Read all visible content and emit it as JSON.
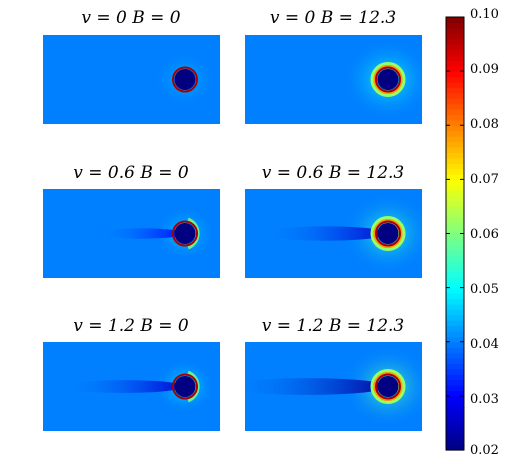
{
  "chart_data": {
    "type": "heatmap",
    "colormap": "jet",
    "panels": [
      {
        "title": "v = 0 B = 0",
        "v": 0,
        "B": 0
      },
      {
        "title": "v = 0 B = 12.3",
        "v": 0,
        "B": 12.3
      },
      {
        "title": "v = 0.6 B = 0",
        "v": 0.6,
        "B": 0
      },
      {
        "title": "v = 0.6 B = 12.3",
        "v": 0.6,
        "B": 12.3
      },
      {
        "title": "v = 1.2 B = 0",
        "v": 1.2,
        "B": 0
      },
      {
        "title": "v = 1.2 B = 12.3",
        "v": 1.2,
        "B": 12.3
      }
    ],
    "background_value": 0.04,
    "colorbar": {
      "range": [
        0.02,
        0.1
      ],
      "ticks": [
        "0.02",
        "0.03",
        "0.04",
        "0.05",
        "0.06",
        "0.07",
        "0.08",
        "0.09",
        "0.10"
      ]
    }
  }
}
